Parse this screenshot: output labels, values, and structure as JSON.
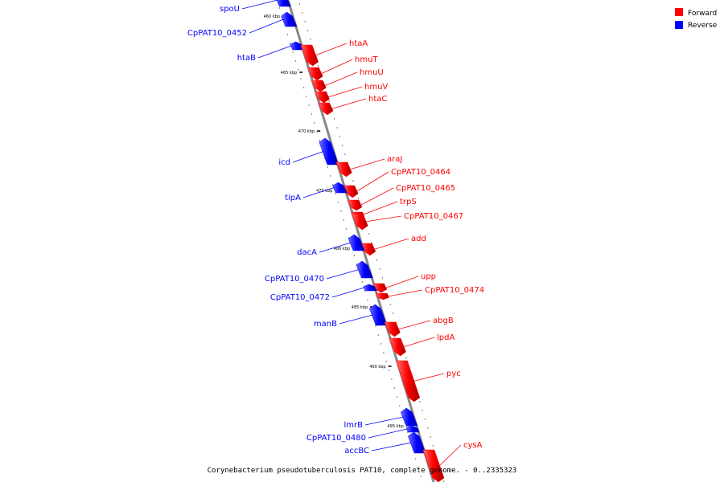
{
  "caption": "Corynebacterium pseudotuberculosis PAT10, complete genome. - 0..2335323",
  "legend": [
    {
      "label": "Forward",
      "color": "#ff0000"
    },
    {
      "label": "Reverse",
      "color": "#0000ff"
    }
  ],
  "colors": {
    "forward": "#ff0000",
    "reverse": "#0000ff",
    "backbone": "#888888"
  },
  "ticks": [
    "460 kbp",
    "465 kbp",
    "470 kbp",
    "475 kbp",
    "480 kbp",
    "485 kbp",
    "490 kbp",
    "495 kbp"
  ],
  "genes": [
    {
      "name": "spoU",
      "strand": "reverse"
    },
    {
      "name": "CpPAT10_0452",
      "strand": "reverse"
    },
    {
      "name": "htaB",
      "strand": "reverse"
    },
    {
      "name": "htaA",
      "strand": "forward"
    },
    {
      "name": "hmuT",
      "strand": "forward"
    },
    {
      "name": "hmuU",
      "strand": "forward"
    },
    {
      "name": "hmuV",
      "strand": "forward"
    },
    {
      "name": "htaC",
      "strand": "forward"
    },
    {
      "name": "icd",
      "strand": "reverse"
    },
    {
      "name": "araJ",
      "strand": "forward"
    },
    {
      "name": "CpPAT10_0464",
      "strand": "forward"
    },
    {
      "name": "CpPAT10_0465",
      "strand": "forward"
    },
    {
      "name": "tipA",
      "strand": "reverse"
    },
    {
      "name": "trpS",
      "strand": "forward"
    },
    {
      "name": "CpPAT10_0467",
      "strand": "forward"
    },
    {
      "name": "add",
      "strand": "forward"
    },
    {
      "name": "dacA",
      "strand": "reverse"
    },
    {
      "name": "CpPAT10_0470",
      "strand": "reverse"
    },
    {
      "name": "upp",
      "strand": "forward"
    },
    {
      "name": "CpPAT10_0474",
      "strand": "forward"
    },
    {
      "name": "CpPAT10_0472",
      "strand": "reverse"
    },
    {
      "name": "manB",
      "strand": "reverse"
    },
    {
      "name": "abgB",
      "strand": "forward"
    },
    {
      "name": "lpdA",
      "strand": "forward"
    },
    {
      "name": "pyc",
      "strand": "forward"
    },
    {
      "name": "lmrB",
      "strand": "reverse"
    },
    {
      "name": "CpPAT10_0480",
      "strand": "reverse"
    },
    {
      "name": "accBC",
      "strand": "reverse"
    },
    {
      "name": "cysA",
      "strand": "forward"
    }
  ]
}
